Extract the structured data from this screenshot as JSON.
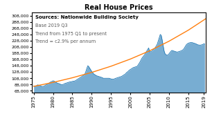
{
  "chart_data": {
    "type": "area",
    "title": "Real House Prices",
    "subtitle": "Sources: Nationwide Building Society",
    "annotations": [
      "Base 2019 Q3",
      "Trend from 1975 Q1 to present",
      "Trend = c2.9% per annum"
    ],
    "xlim": [
      1974.5,
      2019.5
    ],
    "xticks": [
      1975,
      1980,
      1985,
      1990,
      1995,
      2000,
      2005,
      2010,
      2015,
      2019
    ],
    "ylim": [
      63000,
      318000
    ],
    "yticks": [
      {
        "value": 68000,
        "label": "68,000"
      },
      {
        "value": 88000,
        "label": "88,000"
      },
      {
        "value": 108000,
        "label": "108,000"
      },
      {
        "value": 128000,
        "label": "128,000"
      },
      {
        "value": 148000,
        "label": "148,000"
      },
      {
        "value": 168000,
        "label": "168,000"
      },
      {
        "value": 188000,
        "label": "188,000"
      },
      {
        "value": 208000,
        "label": "208,000"
      },
      {
        "value": 228000,
        "label": "228,000"
      },
      {
        "value": 248000,
        "label": "248,000"
      },
      {
        "value": 268000,
        "label": "268,000"
      },
      {
        "value": 288000,
        "label": "288,000"
      },
      {
        "value": 308000,
        "label": "308,000"
      }
    ],
    "grid": false,
    "series": [
      {
        "type": "area",
        "x": [
          1975,
          1975.25,
          1975.5,
          1975.75,
          1976,
          1976.25,
          1976.5,
          1976.75,
          1977,
          1977.25,
          1977.5,
          1977.75,
          1978,
          1978.25,
          1978.5,
          1978.75,
          1979,
          1979.25,
          1979.5,
          1979.75,
          1980,
          1980.25,
          1980.5,
          1980.75,
          1981,
          1981.25,
          1981.5,
          1981.75,
          1982,
          1982.25,
          1982.5,
          1982.75,
          1983,
          1983.25,
          1983.5,
          1983.75,
          1984,
          1984.25,
          1984.5,
          1984.75,
          1985,
          1985.25,
          1985.5,
          1985.75,
          1986,
          1986.25,
          1986.5,
          1986.75,
          1987,
          1987.25,
          1987.5,
          1987.75,
          1988,
          1988.25,
          1988.5,
          1988.75,
          1989,
          1989.25,
          1989.5,
          1989.75,
          1990,
          1990.25,
          1990.5,
          1990.75,
          1991,
          1991.25,
          1991.5,
          1991.75,
          1992,
          1992.25,
          1992.5,
          1992.75,
          1993,
          1993.25,
          1993.5,
          1993.75,
          1994,
          1994.25,
          1994.5,
          1994.75,
          1995,
          1995.25,
          1995.5,
          1995.75,
          1996,
          1996.25,
          1996.5,
          1996.75,
          1997,
          1997.25,
          1997.5,
          1997.75,
          1998,
          1998.25,
          1998.5,
          1998.75,
          1999,
          1999.25,
          1999.5,
          1999.75,
          2000,
          2000.25,
          2000.5,
          2000.75,
          2001,
          2001.25,
          2001.5,
          2001.75,
          2002,
          2002.25,
          2002.5,
          2002.75,
          2003,
          2003.25,
          2003.5,
          2003.75,
          2004,
          2004.25,
          2004.5,
          2004.75,
          2005,
          2005.25,
          2005.5,
          2005.75,
          2006,
          2006.25,
          2006.5,
          2006.75,
          2007,
          2007.25,
          2007.5,
          2007.75,
          2008,
          2008.25,
          2008.5,
          2008.75,
          2009,
          2009.25,
          2009.5,
          2009.75,
          2010,
          2010.25,
          2010.5,
          2010.75,
          2011,
          2011.25,
          2011.5,
          2011.75,
          2012,
          2012.25,
          2012.5,
          2012.75,
          2013,
          2013.25,
          2013.5,
          2013.75,
          2014,
          2014.25,
          2014.5,
          2014.75,
          2015,
          2015.25,
          2015.5,
          2015.75,
          2016,
          2016.25,
          2016.5,
          2016.75,
          2017,
          2017.25,
          2017.5,
          2017.75,
          2018,
          2018.25,
          2018.5,
          2018.75,
          2019,
          2019.25
        ],
        "values": [
          84000,
          83000,
          83500,
          84000,
          87000,
          86000,
          85000,
          84000,
          82000,
          82000,
          82500,
          83000,
          86000,
          87000,
          88000,
          90000,
          93000,
          95000,
          97000,
          98000,
          100000,
          99000,
          97000,
          95000,
          93000,
          92000,
          91000,
          90000,
          88000,
          88000,
          88000,
          89000,
          91000,
          92000,
          93000,
          94000,
          95000,
          96000,
          96500,
          97000,
          98000,
          98500,
          99000,
          100000,
          102000,
          104000,
          106000,
          108000,
          110000,
          112000,
          114000,
          116000,
          118000,
          122000,
          130000,
          140000,
          148000,
          145000,
          140000,
          135000,
          130000,
          126000,
          122000,
          120000,
          118000,
          116000,
          115000,
          114000,
          113000,
          112000,
          111000,
          110000,
          108000,
          108000,
          108000,
          108000,
          108000,
          108000,
          108000,
          107000,
          106000,
          105000,
          105000,
          105000,
          107000,
          108000,
          109000,
          110000,
          111000,
          112000,
          113000,
          114000,
          116000,
          118000,
          120000,
          122000,
          126000,
          128000,
          131000,
          134000,
          136000,
          138000,
          140000,
          142000,
          143000,
          144000,
          145000,
          146000,
          150000,
          155000,
          160000,
          166000,
          172000,
          176000,
          180000,
          184000,
          190000,
          195000,
          200000,
          205000,
          192000,
          193000,
          194000,
          196000,
          200000,
          203000,
          207000,
          212000,
          218000,
          228000,
          238000,
          248000,
          245000,
          230000,
          212000,
          195000,
          186000,
          183000,
          182000,
          182000,
          186000,
          190000,
          194000,
          197000,
          196000,
          195000,
          194000,
          193000,
          192000,
          192000,
          193000,
          194000,
          195000,
          196000,
          198000,
          200000,
          205000,
          210000,
          215000,
          218000,
          220000,
          221000,
          222000,
          222000,
          222000,
          221000,
          220000,
          219000,
          218000,
          216000,
          215000,
          214000,
          214000,
          214000,
          215000,
          216000,
          218000,
          218000
        ]
      },
      {
        "type": "line",
        "x": [
          1975,
          1980,
          1985,
          1990,
          1995,
          2000,
          2005,
          2010,
          2015,
          2019.5
        ],
        "values": [
          82000,
          94795,
          109587,
          126687,
          146455,
          169308,
          195727,
          226268,
          261575,
          298037
        ]
      }
    ]
  }
}
